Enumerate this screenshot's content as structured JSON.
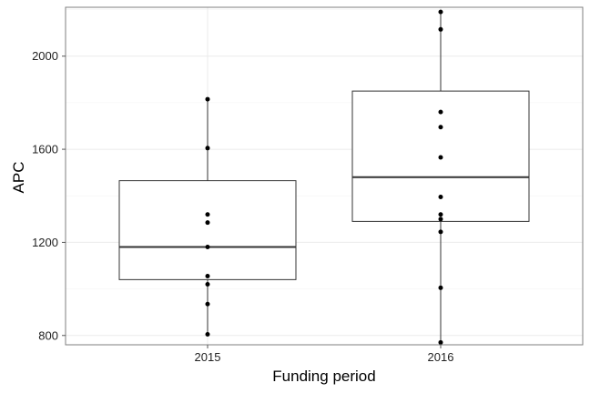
{
  "chart_data": {
    "type": "box",
    "xlabel": "Funding period",
    "ylabel": "APC",
    "ylim": [
      760,
      2210
    ],
    "yticks": [
      800,
      1200,
      1600,
      2000
    ],
    "grid": true,
    "categories": [
      "2015",
      "2016"
    ],
    "boxes": [
      {
        "category": "2015",
        "whisker_low": 805,
        "q1": 1040,
        "median": 1180,
        "q3": 1465,
        "whisker_high": 1815
      },
      {
        "category": "2016",
        "whisker_low": 770,
        "q1": 1290,
        "median": 1480,
        "q3": 1850,
        "whisker_high": 2190
      }
    ],
    "points": [
      {
        "category": "2015",
        "values": [
          1815,
          1605,
          1320,
          1285,
          1180,
          1055,
          1020,
          935,
          805
        ]
      },
      {
        "category": "2016",
        "values": [
          2190,
          2115,
          1760,
          1695,
          1565,
          1395,
          1320,
          1300,
          1245,
          1005,
          770
        ]
      }
    ],
    "colors": {
      "panel_border": "#7f7f7f",
      "grid": "#ebebeb",
      "box": "#333333",
      "point": "#000000"
    }
  }
}
